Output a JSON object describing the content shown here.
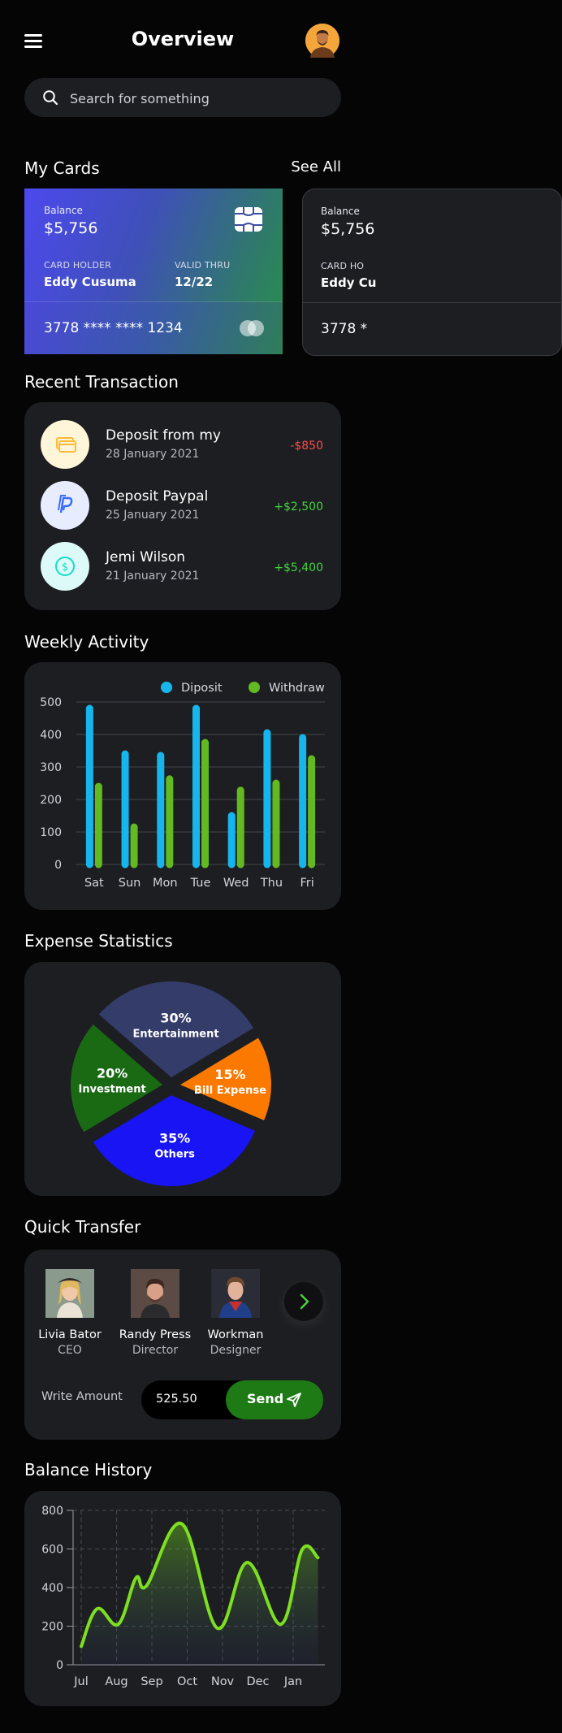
{
  "header": {
    "title": "Overview",
    "menu_icon": "hamburger-menu-icon",
    "avatar": "user-avatar"
  },
  "search": {
    "placeholder": "Search for something"
  },
  "cards_section": {
    "title": "My Cards",
    "see_all": "See All"
  },
  "cards": [
    {
      "balance_label": "Balance",
      "balance": "$5,756",
      "holder_label": "CARD HOLDER",
      "holder": "Eddy Cusuma",
      "valid_label": "VALID THRU",
      "valid": "12/22",
      "number": "3778 **** **** 1234"
    },
    {
      "balance_label": "Balance",
      "balance": "$5,756",
      "holder_label": "CARD HO",
      "holder": "Eddy Cu",
      "number": "3778 *"
    }
  ],
  "transactions": {
    "title": "Recent Transaction",
    "items": [
      {
        "title": "Deposit from my",
        "date": "28 January 2021",
        "amount": "-$850",
        "icon": "credit-card-icon",
        "amount_color": "#ff4b4a"
      },
      {
        "title": "Deposit Paypal",
        "date": "25 January 2021",
        "amount": "+$2,500",
        "icon": "paypal-icon",
        "amount_color": "#41d43c"
      },
      {
        "title": "Jemi Wilson",
        "date": "21 January 2021",
        "amount": "+$5,400",
        "icon": "dollar-coin-icon",
        "amount_color": "#41d43c"
      }
    ]
  },
  "weekly": {
    "title": "Weekly Activity",
    "chart_data": {
      "type": "bar",
      "categories": [
        "Sat",
        "Sun",
        "Mon",
        "Tue",
        "Wed",
        "Thu",
        "Fri"
      ],
      "series": [
        {
          "name": "Diposit",
          "color": "#16b6ec",
          "values": [
            480,
            340,
            335,
            480,
            150,
            405,
            390
          ]
        },
        {
          "name": "Withdraw",
          "color": "#62b921",
          "values": [
            240,
            115,
            263,
            375,
            228,
            250,
            325
          ]
        }
      ],
      "ylim": [
        0,
        500
      ],
      "yticks": [
        "500",
        "400",
        "300",
        "200",
        "100",
        "0"
      ],
      "grid": true,
      "legend": "top-right"
    }
  },
  "expense": {
    "title": "Expense Statistics",
    "chart_data": {
      "type": "pie",
      "slices": [
        {
          "label": "Entertainment",
          "pct": "30%",
          "value": 30,
          "color": "#343c6a"
        },
        {
          "label": "Bill Expense",
          "pct": "15%",
          "value": 15,
          "color": "#fc7900"
        },
        {
          "label": "Others",
          "pct": "35%",
          "value": 35,
          "color": "#1814f3"
        },
        {
          "label": "Investment",
          "pct": "20%",
          "value": 20,
          "color": "#1a6a14"
        }
      ]
    }
  },
  "quick_transfer": {
    "title": "Quick Transfer",
    "people": [
      {
        "name": "Livia Bator",
        "role": "CEO"
      },
      {
        "name": "Randy Press",
        "role": "Director"
      },
      {
        "name": "Workman",
        "role": "Designer"
      }
    ],
    "amount_label": "Write Amount",
    "amount_value": "525.50",
    "send_label": "Send"
  },
  "balance_history": {
    "title": "Balance History",
    "chart_data": {
      "type": "area",
      "x": [
        "Jul",
        "Aug",
        "Sep",
        "Oct",
        "Nov",
        "Dec",
        "Jan"
      ],
      "points": [
        {
          "month": 0.0,
          "value": 95
        },
        {
          "month": 0.45,
          "value": 290
        },
        {
          "month": 1.05,
          "value": 210
        },
        {
          "month": 1.55,
          "value": 450
        },
        {
          "month": 1.85,
          "value": 410
        },
        {
          "month": 2.85,
          "value": 730
        },
        {
          "month": 3.85,
          "value": 190
        },
        {
          "month": 4.7,
          "value": 530
        },
        {
          "month": 5.65,
          "value": 210
        },
        {
          "month": 6.25,
          "value": 595
        },
        {
          "month": 6.7,
          "value": 555
        }
      ],
      "ylim": [
        0,
        800
      ],
      "yticks": [
        "800",
        "600",
        "400",
        "200",
        "0"
      ],
      "color": "#7ddf20",
      "grid": true
    }
  }
}
